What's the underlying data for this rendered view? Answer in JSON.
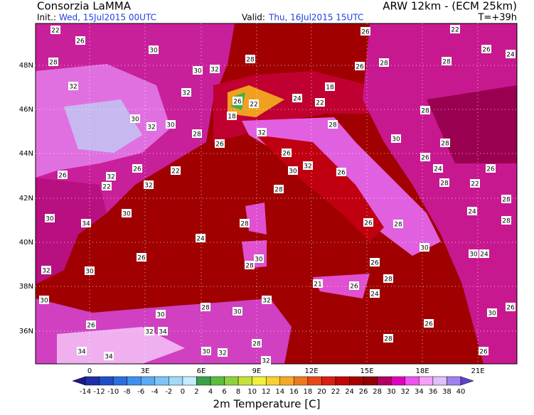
{
  "header": {
    "title_left": "Consorzia LaMMA",
    "title_right": "ARW 12km - (ECM 25km)",
    "init_label": "Init.:",
    "init": "Wed, 15Jul2015 00UTC",
    "valid_label": "Valid:",
    "valid": "Thu, 16Jul2015 15UTC",
    "step": "T=+39h"
  },
  "map": {
    "lat_labels": [
      "48N",
      "46N",
      "44N",
      "42N",
      "40N",
      "38N",
      "36N"
    ],
    "lon_labels": [
      "0",
      "3E",
      "6E",
      "9E",
      "12E",
      "15E",
      "18E",
      "21E"
    ],
    "point_values": [
      22,
      26,
      30,
      28,
      30,
      32,
      32,
      32,
      28,
      26,
      28,
      28,
      24,
      26,
      22,
      26,
      30,
      30,
      32,
      28,
      26,
      18,
      26,
      22,
      24,
      18,
      22,
      32,
      28,
      26,
      30,
      32,
      26,
      30,
      28,
      26,
      28,
      24,
      26,
      22,
      26,
      32,
      22,
      32,
      30,
      30,
      34,
      24,
      28,
      28,
      30,
      28,
      26,
      32,
      30,
      30,
      26,
      28,
      24,
      21,
      26,
      32,
      30,
      28,
      30,
      26,
      32,
      34,
      28,
      28,
      26,
      34,
      34,
      30,
      32,
      32,
      26,
      30,
      24,
      26,
      30,
      28,
      26,
      30,
      28,
      22,
      24,
      28,
      26,
      28
    ]
  },
  "colorbar": {
    "labels": [
      -14,
      -12,
      -10,
      -8,
      -6,
      -4,
      -2,
      0,
      2,
      4,
      6,
      8,
      10,
      12,
      14,
      16,
      18,
      20,
      22,
      24,
      26,
      28,
      30,
      32,
      34,
      36,
      38,
      40
    ],
    "colors": [
      "#1a1a8c",
      "#1c2fa8",
      "#1f4fc8",
      "#2a6ee0",
      "#3f8ff0",
      "#5aaaf5",
      "#7cc4f8",
      "#a0dafa",
      "#c4ecfc",
      "#3aa04a",
      "#5abe3c",
      "#8cd23c",
      "#c8e03c",
      "#f0f03c",
      "#f8d030",
      "#f8a828",
      "#f07820",
      "#e84818",
      "#d82010",
      "#c00808",
      "#a80000",
      "#900000",
      "#b00060",
      "#e000c0",
      "#f050f0",
      "#f8a0f8",
      "#e0c0f8",
      "#a080f0",
      "#6040d0"
    ],
    "title": "2m Temperature [C]"
  }
}
